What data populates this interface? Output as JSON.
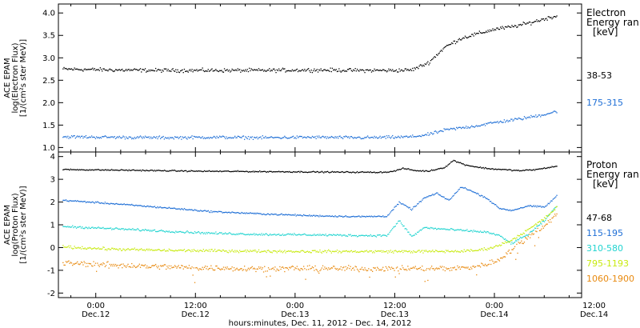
{
  "colors": {
    "black": "#000000",
    "blue": "#1f6fd6",
    "cyan": "#22d4d0",
    "yellow": "#c8ea10",
    "orange": "#e88a10"
  },
  "x_axis": {
    "tick_times": [
      "0:00",
      "12:00",
      "0:00",
      "12:00",
      "0:00",
      "12:00"
    ],
    "tick_dates": [
      "Dec.12",
      "Dec.12",
      "Dec.13",
      "Dec.13",
      "Dec.14",
      "Dec.14"
    ],
    "title": "hours:minutes, Dec. 11, 2012 - Dec. 14, 2012"
  },
  "chart_data": [
    {
      "type": "scatter",
      "panel": "electron",
      "ylabel_lines": [
        "ACE EPAM",
        "log(Electron Flux)",
        "[1/(cm²s ster MeV)]"
      ],
      "ylim": [
        0.9,
        4.2
      ],
      "yticks": [
        "1.0",
        "1.5",
        "2.0",
        "2.5",
        "3.0",
        "3.5",
        "4.0"
      ],
      "ytick_values": [
        1.0,
        1.5,
        2.0,
        2.5,
        3.0,
        3.5,
        4.0
      ],
      "xlim_hours": [
        -4.5,
        58.5
      ],
      "legend_title_lines": [
        "Electron",
        "Energy ran",
        "[keV]"
      ],
      "series": [
        {
          "name": "38-53",
          "color": "#000000",
          "x_hours": [
            -4,
            2,
            8,
            14,
            20,
            26,
            32,
            36,
            38,
            40,
            42,
            44,
            46,
            48,
            50,
            52,
            54,
            55.5
          ],
          "y": [
            2.76,
            2.74,
            2.73,
            2.73,
            2.73,
            2.74,
            2.73,
            2.73,
            2.74,
            2.9,
            3.25,
            3.45,
            3.55,
            3.65,
            3.7,
            3.78,
            3.88,
            3.95
          ],
          "noise": 0.06
        },
        {
          "name": "175-315",
          "color": "#1f6fd6",
          "x_hours": [
            -4,
            2,
            8,
            14,
            20,
            26,
            32,
            36,
            38,
            40,
            42,
            44,
            46,
            48,
            50,
            52,
            54,
            55.5
          ],
          "y": [
            1.25,
            1.24,
            1.23,
            1.24,
            1.23,
            1.24,
            1.23,
            1.24,
            1.25,
            1.3,
            1.4,
            1.45,
            1.5,
            1.57,
            1.62,
            1.68,
            1.75,
            1.82
          ],
          "noise": 0.05
        }
      ]
    },
    {
      "type": "scatter",
      "panel": "proton",
      "ylabel_lines": [
        "ACE EPAM",
        "log(Proton Flux)",
        "[1/(cm²s ster MeV)]"
      ],
      "ylim": [
        -2.2,
        4.2
      ],
      "yticks": [
        "-2",
        "-1",
        "0",
        "1",
        "2",
        "3",
        "4"
      ],
      "ytick_values": [
        -2,
        -1,
        0,
        1,
        2,
        3,
        4
      ],
      "xlim_hours": [
        -4.5,
        58.5
      ],
      "legend_title_lines": [
        "Proton",
        "Energy ran",
        "[keV]"
      ],
      "series": [
        {
          "name": "47-68",
          "color": "#000000",
          "x_hours": [
            -4,
            4,
            12,
            20,
            28,
            34,
            35.5,
            37,
            38.5,
            40,
            42,
            43,
            44.5,
            46,
            47.5,
            49,
            51,
            53,
            55.5
          ],
          "y": [
            3.45,
            3.42,
            3.38,
            3.36,
            3.34,
            3.33,
            3.35,
            3.5,
            3.4,
            3.38,
            3.55,
            3.85,
            3.65,
            3.55,
            3.48,
            3.45,
            3.4,
            3.45,
            3.6
          ],
          "noise": 0.04
        },
        {
          "name": "115-195",
          "color": "#1f6fd6",
          "x_hours": [
            -4,
            2,
            8,
            14,
            20,
            26,
            32,
            35,
            36.5,
            38,
            39.5,
            41,
            42.5,
            44,
            45.5,
            47,
            48.5,
            50,
            52,
            54,
            55.5
          ],
          "y": [
            2.1,
            1.95,
            1.78,
            1.6,
            1.5,
            1.42,
            1.38,
            1.4,
            2.0,
            1.7,
            2.2,
            2.4,
            2.1,
            2.7,
            2.45,
            2.2,
            1.75,
            1.65,
            1.85,
            1.8,
            2.3
          ],
          "noise": 0.05
        },
        {
          "name": "310-580",
          "color": "#22d4d0",
          "x_hours": [
            -4,
            2,
            8,
            14,
            20,
            26,
            32,
            35,
            36.5,
            38,
            39.5,
            41,
            43,
            45,
            47,
            48.5,
            50,
            52,
            54,
            55.5
          ],
          "y": [
            0.95,
            0.85,
            0.75,
            0.65,
            0.6,
            0.58,
            0.55,
            0.55,
            1.2,
            0.5,
            0.9,
            0.85,
            0.8,
            0.75,
            0.7,
            0.55,
            0.2,
            0.6,
            1.2,
            1.9
          ],
          "noise": 0.07
        },
        {
          "name": "795-1193",
          "color": "#c8ea10",
          "x_hours": [
            -4,
            2,
            8,
            14,
            20,
            26,
            32,
            36,
            40,
            44,
            46,
            48,
            50,
            52,
            54,
            55.5
          ],
          "y": [
            0.05,
            -0.05,
            -0.1,
            -0.12,
            -0.14,
            -0.15,
            -0.15,
            -0.15,
            -0.15,
            -0.14,
            -0.1,
            0.05,
            0.35,
            0.8,
            1.3,
            1.8
          ],
          "noise": 0.09
        },
        {
          "name": "1060-1900",
          "color": "#e88a10",
          "x_hours": [
            -4,
            2,
            8,
            14,
            20,
            26,
            32,
            36,
            40,
            44,
            46,
            48,
            50,
            52,
            54,
            55.5
          ],
          "y": [
            -0.65,
            -0.75,
            -0.82,
            -0.88,
            -0.9,
            -0.9,
            -0.9,
            -0.9,
            -0.9,
            -0.88,
            -0.8,
            -0.6,
            -0.1,
            0.5,
            1.0,
            1.5
          ],
          "noise": 0.18
        }
      ]
    }
  ]
}
